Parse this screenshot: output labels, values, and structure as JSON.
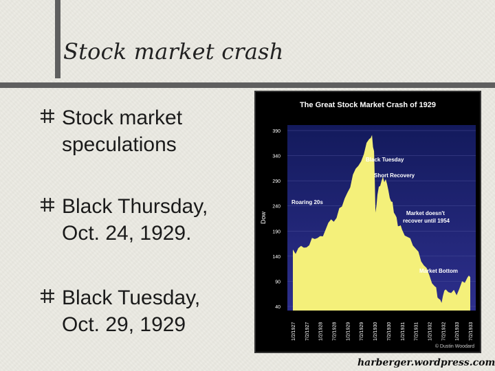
{
  "slide": {
    "title": "Stock market crash",
    "bullets": [
      {
        "line1": "Stock market",
        "line2": "speculations"
      },
      {
        "line1": "Black Thursday,",
        "line2": "Oct. 24, 1929."
      },
      {
        "line1": "Black Tuesday,",
        "line2": "Oct. 29, 1929"
      }
    ],
    "footer": "harberger.wordpress.com"
  },
  "colors": {
    "background": "#ecebe3",
    "chart_fill": "#f4f07a",
    "chart_bg_top": "#131a5c",
    "chart_bg_bottom": "#2d2f8c"
  },
  "chart_data": {
    "type": "area",
    "title": "The Great Stock Market Crash of 1929",
    "ylabel": "Dow",
    "ylim": [
      40,
      390
    ],
    "yticks": [
      390,
      340,
      290,
      240,
      190,
      140,
      90,
      40
    ],
    "x_tick_labels": [
      "1/2/1927",
      "7/2/1927",
      "1/2/1928",
      "7/2/1928",
      "1/2/1929",
      "7/2/1929",
      "1/2/1930",
      "7/2/1930",
      "1/2/1931",
      "7/2/1931",
      "1/2/1932",
      "7/2/1932",
      "1/2/1933",
      "7/2/1933"
    ],
    "series": [
      {
        "x": [
          0,
          0.4,
          0.8,
          1.2,
          1.6,
          2.0,
          2.4,
          2.8,
          3.2,
          3.6,
          4.0,
          4.4,
          4.8,
          5.2,
          5.6,
          5.8,
          5.95,
          6.05,
          6.2,
          6.4,
          6.6,
          6.8,
          7.0,
          7.2,
          7.4,
          7.6,
          7.8,
          8.0,
          8.4,
          8.8,
          9.2,
          9.6,
          10.0,
          10.4,
          10.6,
          10.8,
          11.0,
          11.2,
          11.6,
          12.0,
          12.4,
          12.8,
          13.0
        ],
        "y": [
          150,
          155,
          158,
          165,
          172,
          180,
          195,
          210,
          215,
          240,
          270,
          300,
          320,
          345,
          370,
          380,
          350,
          230,
          260,
          280,
          300,
          290,
          270,
          250,
          230,
          215,
          200,
          195,
          175,
          160,
          150,
          125,
          100,
          80,
          60,
          50,
          60,
          75,
          70,
          60,
          90,
          100,
          95
        ]
      }
    ],
    "annotations": [
      "Black Tuesday",
      "Short Recovery",
      "Roaring 20s",
      "Market doesn't recover until 1954",
      "Market Bottom"
    ],
    "credit": "© Dustin Woodard"
  }
}
